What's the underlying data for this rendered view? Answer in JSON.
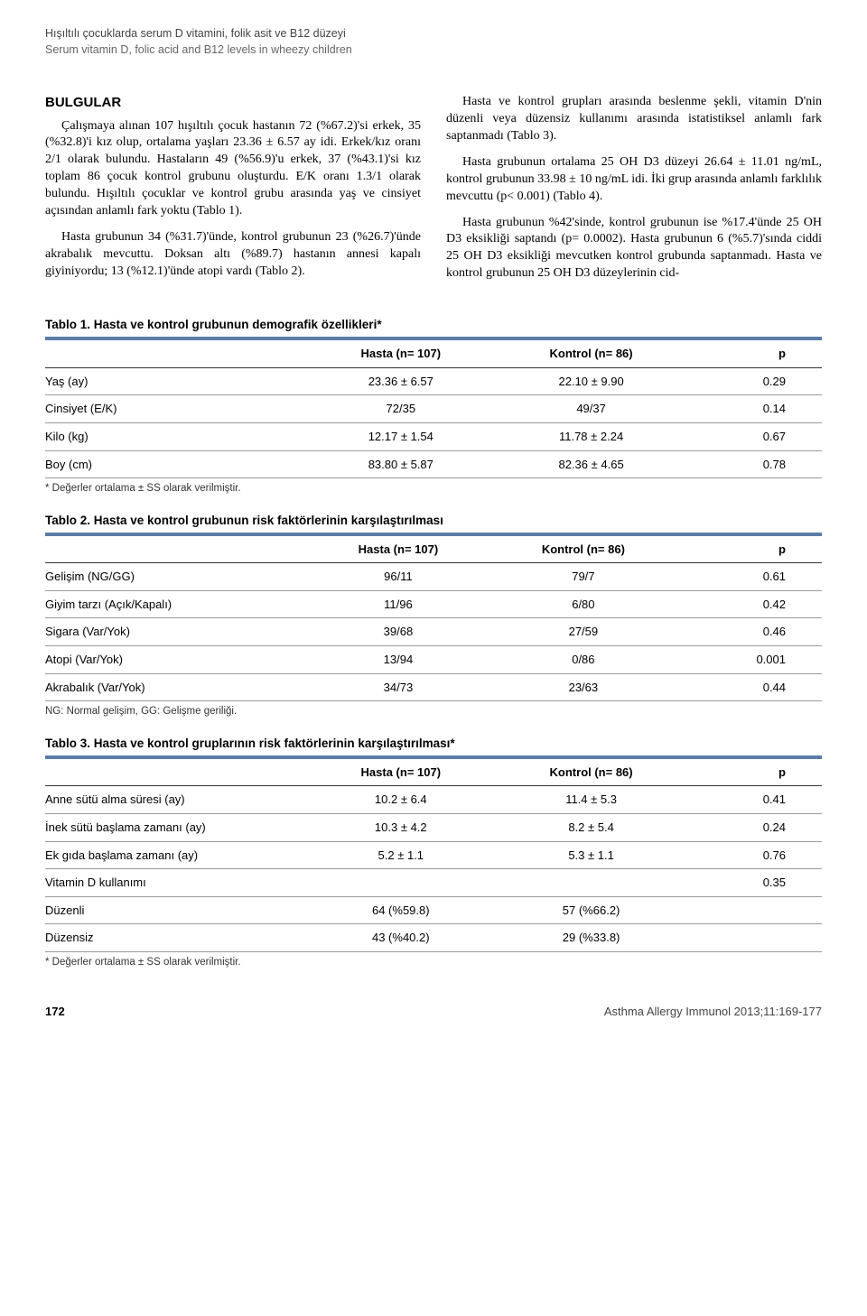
{
  "header": {
    "line1_tr": "Hışıltılı çocuklarda serum D vitamini, folik asit ve B12 düzeyi",
    "line2_en": "Serum vitamin D, folic acid and B12 levels in wheezy children"
  },
  "section_title": "BULGULAR",
  "left_col": {
    "p1": "Çalışmaya alınan 107 hışıltılı çocuk hastanın 72 (%67.2)'si erkek, 35 (%32.8)'i kız olup, ortalama yaşları 23.36 ± 6.57 ay idi. Erkek/kız oranı 2/1 olarak bulundu. Hastaların 49 (%56.9)'u erkek, 37 (%43.1)'si kız toplam 86 çocuk kontrol grubunu oluşturdu. E/K oranı 1.3/1 olarak bulundu. Hışıltılı çocuklar ve kontrol grubu arasında yaş ve cinsiyet açısından anlamlı fark yoktu (Tablo 1).",
    "p2": "Hasta grubunun 34 (%31.7)'ünde, kontrol grubunun 23 (%26.7)'ünde akrabalık mevcuttu. Doksan altı (%89.7) hastanın annesi kapalı giyiniyordu; 13 (%12.1)'ünde atopi vardı (Tablo 2)."
  },
  "right_col": {
    "p1": "Hasta ve kontrol grupları arasında beslenme şekli, vitamin D'nin düzenli veya düzensiz kullanımı arasında istatistiksel anlamlı fark saptanmadı (Tablo 3).",
    "p2": "Hasta grubunun ortalama 25 OH D3 düzeyi 26.64 ± 11.01 ng/mL, kontrol grubunun 33.98 ± 10 ng/mL idi. İki grup arasında anlamlı farklılık mevcuttu (p< 0.001) (Tablo 4).",
    "p3": "Hasta grubunun %42'sinde, kontrol grubunun ise %17.4'ünde 25 OH D3 eksikliği saptandı (p= 0.0002). Hasta grubunun 6 (%5.7)'sında ciddi 25 OH D3 eksikliği mevcutken kontrol grubunda saptanmadı. Hasta ve kontrol grubunun 25 OH D3 düzeylerinin cid-"
  },
  "tables": {
    "t1": {
      "title": "Tablo 1. Hasta ve kontrol grubunun demografik özellikleri*",
      "bar_color": "#5b7ca8",
      "columns": [
        "",
        "Hasta (n= 107)",
        "Kontrol (n= 86)",
        "p"
      ],
      "rows": [
        [
          "Yaş (ay)",
          "23.36 ± 6.57",
          "22.10 ± 9.90",
          "0.29"
        ],
        [
          "Cinsiyet (E/K)",
          "72/35",
          "49/37",
          "0.14"
        ],
        [
          "Kilo (kg)",
          "12.17 ± 1.54",
          "11.78 ± 2.24",
          "0.67"
        ],
        [
          "Boy (cm)",
          "83.80 ± 5.87",
          "82.36 ± 4.65",
          "0.78"
        ]
      ],
      "note": "* Değerler ortalama ± SS olarak verilmiştir."
    },
    "t2": {
      "title": "Tablo 2. Hasta ve kontrol grubunun risk faktörlerinin karşılaştırılması",
      "bar_color": "#5b7ca8",
      "columns": [
        "",
        "Hasta (n= 107)",
        "Kontrol (n= 86)",
        "p"
      ],
      "rows": [
        [
          "Gelişim (NG/GG)",
          "96/11",
          "79/7",
          "0.61"
        ],
        [
          "Giyim tarzı (Açık/Kapalı)",
          "11/96",
          "6/80",
          "0.42"
        ],
        [
          "Sigara (Var/Yok)",
          "39/68",
          "27/59",
          "0.46"
        ],
        [
          "Atopi (Var/Yok)",
          "13/94",
          "0/86",
          "0.001"
        ],
        [
          "Akrabalık (Var/Yok)",
          "34/73",
          "23/63",
          "0.44"
        ]
      ],
      "note": "NG: Normal gelişim, GG: Gelişme geriliği."
    },
    "t3": {
      "title": "Tablo 3. Hasta ve kontrol gruplarının risk faktörlerinin karşılaştırılması*",
      "bar_color": "#5b7ca8",
      "columns": [
        "",
        "Hasta (n= 107)",
        "Kontrol (n= 86)",
        "p"
      ],
      "rows": [
        [
          "Anne sütü alma süresi (ay)",
          "10.2 ± 6.4",
          "11.4 ± 5.3",
          "0.41"
        ],
        [
          "İnek sütü başlama zamanı (ay)",
          "10.3 ± 4.2",
          "8.2 ± 5.4",
          "0.24"
        ],
        [
          "Ek gıda başlama zamanı (ay)",
          "5.2 ± 1.1",
          "5.3 ± 1.1",
          "0.76"
        ],
        [
          "Vitamin D kullanımı",
          "",
          "",
          "0.35"
        ],
        [
          "Düzenli",
          "64 (%59.8)",
          "57 (%66.2)",
          ""
        ],
        [
          "Düzensiz",
          "43 (%40.2)",
          "29 (%33.8)",
          ""
        ]
      ],
      "note": "* Değerler ortalama ± SS olarak verilmiştir."
    }
  },
  "footer": {
    "page": "172",
    "journal": "Asthma Allergy Immunol 2013;11:169-177"
  },
  "style": {
    "background_color": "#ffffff",
    "text_color": "#000000",
    "bar_color": "#5b7ca8",
    "border_color": "#999999",
    "body_font_size_pt": 11,
    "title_font_size_pt": 11,
    "note_font_size_pt": 9
  }
}
